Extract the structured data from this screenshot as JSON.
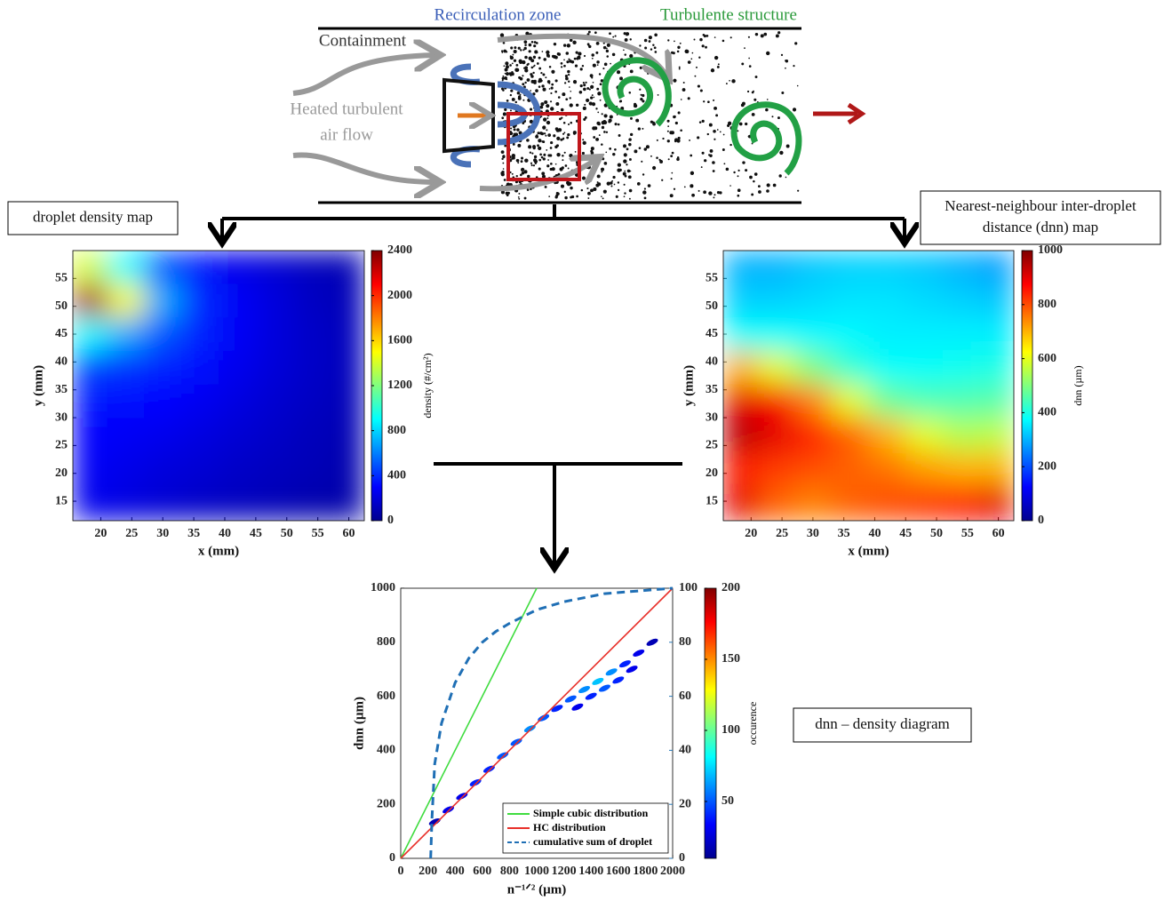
{
  "diagram": {
    "labels": [
      "Recirculation zone",
      "Turbulente structure",
      "Containment",
      "Heated turbulent",
      "air flow"
    ]
  },
  "chart_data": [
    {
      "type": "heatmap",
      "title": "droplet density map",
      "xlabel": "x (mm)",
      "ylabel": "y (mm)",
      "colorbar_label": "density (#/cm²)",
      "x": [
        18,
        24,
        30,
        36,
        42,
        48,
        54,
        60
      ],
      "y": [
        57,
        51,
        45,
        39,
        33,
        27,
        21,
        15
      ],
      "z": [
        [
          1400,
          900,
          500,
          350,
          250,
          200,
          150,
          120
        ],
        [
          2300,
          1500,
          700,
          400,
          280,
          220,
          160,
          130
        ],
        [
          900,
          700,
          500,
          380,
          280,
          220,
          170,
          140
        ],
        [
          450,
          420,
          380,
          330,
          260,
          210,
          170,
          140
        ],
        [
          350,
          330,
          300,
          270,
          230,
          190,
          160,
          130
        ],
        [
          300,
          280,
          260,
          230,
          200,
          170,
          140,
          120
        ],
        [
          280,
          250,
          220,
          200,
          170,
          150,
          130,
          110
        ],
        [
          260,
          230,
          200,
          170,
          150,
          130,
          110,
          100
        ]
      ],
      "xlim": [
        15.5,
        62.5
      ],
      "ylim": [
        11.5,
        60
      ],
      "xticks": [
        20,
        25,
        30,
        35,
        40,
        45,
        50,
        55,
        60
      ],
      "yticks": [
        15,
        20,
        25,
        30,
        35,
        40,
        45,
        50,
        55
      ],
      "clim": [
        0,
        2400
      ],
      "cticks": [
        0,
        400,
        800,
        1200,
        1600,
        2000,
        2400
      ],
      "colormap": "jet"
    },
    {
      "type": "heatmap",
      "title": [
        "Nearest-neighbour inter-droplet",
        "distance (dnn) map"
      ],
      "xlabel": "x (mm)",
      "ylabel": "y (mm)",
      "colorbar_label": "dnn (µm)",
      "x": [
        18,
        24,
        30,
        36,
        42,
        48,
        54,
        60
      ],
      "y": [
        57,
        51,
        45,
        39,
        33,
        27,
        21,
        15
      ],
      "z": [
        [
          300,
          300,
          320,
          330,
          330,
          320,
          300,
          280
        ],
        [
          330,
          330,
          340,
          350,
          350,
          340,
          330,
          320
        ],
        [
          380,
          380,
          370,
          370,
          360,
          360,
          360,
          360
        ],
        [
          700,
          600,
          500,
          420,
          380,
          380,
          390,
          400
        ],
        [
          900,
          880,
          750,
          600,
          480,
          450,
          450,
          460
        ],
        [
          950,
          900,
          850,
          780,
          700,
          600,
          550,
          560
        ],
        [
          850,
          820,
          800,
          780,
          760,
          720,
          700,
          700
        ],
        [
          900,
          780,
          750,
          780,
          800,
          820,
          850,
          900
        ]
      ],
      "xlim": [
        15.5,
        62.5
      ],
      "ylim": [
        11.5,
        60
      ],
      "xticks": [
        20,
        25,
        30,
        35,
        40,
        45,
        50,
        55,
        60
      ],
      "yticks": [
        15,
        20,
        25,
        30,
        35,
        40,
        45,
        50,
        55
      ],
      "clim": [
        0,
        1000
      ],
      "cticks": [
        0,
        200,
        400,
        600,
        800,
        1000
      ],
      "colormap": "jet"
    },
    {
      "type": "scatter",
      "title": "dnn – density diagram",
      "xlabel": "n⁻¹ᐟ² (µm)",
      "ylabel": "dnn (µm)",
      "colorbar_label": "occurence",
      "xlim": [
        0,
        2000
      ],
      "xticks": [
        0,
        200,
        400,
        600,
        800,
        1000,
        1200,
        1400,
        1600,
        1800,
        2000
      ],
      "ylim": [
        0,
        1000
      ],
      "yticks": [
        0,
        200,
        400,
        600,
        800,
        1000
      ],
      "y2lim": [
        0,
        100
      ],
      "y2ticks": [
        0,
        20,
        40,
        60,
        80,
        100
      ],
      "y2color": "#2a7ab8",
      "clim": [
        10,
        200
      ],
      "cticks": [
        50,
        100,
        150,
        200
      ],
      "colormap": "jet",
      "legend": "lower right",
      "series": [
        {
          "name": "Simple cubic distribution",
          "color": "#3fdc3f",
          "style": "solid",
          "x": [
            0,
            1000
          ],
          "values": [
            0,
            1000
          ]
        },
        {
          "name": "HC distribution",
          "color": "#e8302a",
          "style": "solid",
          "x": [
            0,
            2000
          ],
          "values": [
            0,
            1000
          ]
        },
        {
          "name": "cumulative sum of droplet",
          "color": "#1f6fb5",
          "style": "dashed",
          "axis": "y2",
          "x": [
            220,
            230,
            250,
            300,
            400,
            500,
            600,
            700,
            800,
            1000,
            1200,
            1500,
            2000
          ],
          "values": [
            0,
            15,
            35,
            50,
            65,
            74,
            80,
            84,
            87,
            92,
            95,
            98,
            100
          ]
        }
      ],
      "points": {
        "x": [
          250,
          350,
          450,
          550,
          650,
          750,
          850,
          950,
          1050,
          1150,
          1250,
          1350,
          1450,
          1550,
          1650,
          1750,
          1850,
          1300,
          1400,
          1500,
          1600,
          1700
        ],
        "y": [
          135,
          180,
          230,
          280,
          330,
          380,
          430,
          480,
          520,
          555,
          590,
          625,
          655,
          690,
          720,
          760,
          800,
          560,
          600,
          630,
          660,
          700
        ],
        "values": [
          20,
          30,
          30,
          40,
          40,
          50,
          50,
          60,
          50,
          40,
          50,
          60,
          70,
          60,
          40,
          30,
          20,
          30,
          40,
          50,
          40,
          30
        ]
      }
    }
  ]
}
